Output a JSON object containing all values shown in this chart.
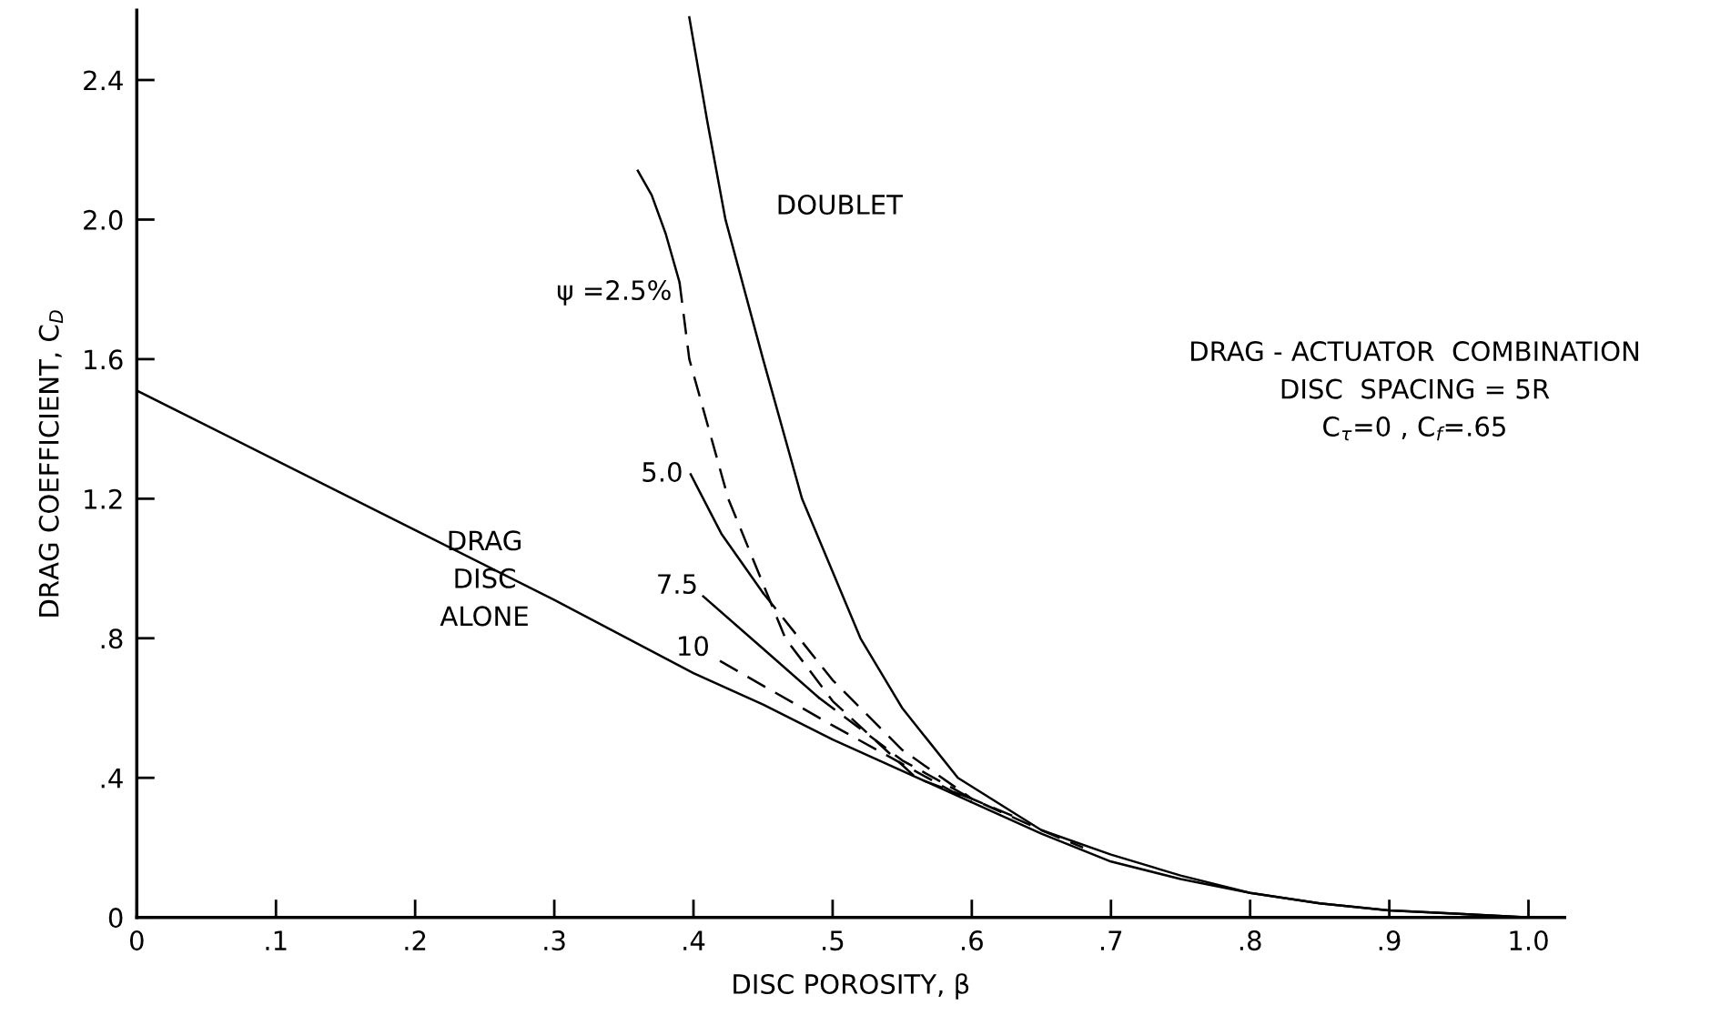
{
  "chart_data": {
    "type": "line",
    "xlabel": "DISC POROSITY, β",
    "ylabel": "DRAG COEFFICIENT, C$_{D}$",
    "xlim": [
      0,
      1.026
    ],
    "ylim": [
      0,
      2.6
    ],
    "xticks": [
      0,
      {
        "value": 0.1,
        "label": ".1"
      },
      {
        "value": 0.2,
        "label": ".2"
      },
      {
        "value": 0.3,
        "label": ".3"
      },
      {
        "value": 0.4,
        "label": ".4"
      },
      {
        "value": 0.5,
        "label": ".5"
      },
      {
        "value": 0.6,
        "label": ".6"
      },
      {
        "value": 0.7,
        "label": ".7"
      },
      {
        "value": 0.8,
        "label": ".8"
      },
      {
        "value": 0.9,
        "label": ".9"
      },
      {
        "value": 1.0,
        "label": "1.0"
      }
    ],
    "yticks": [
      0,
      {
        "value": 0.4,
        "label": ".4"
      },
      {
        "value": 0.8,
        "label": ".8"
      },
      {
        "value": 1.2,
        "label": "1.2"
      },
      {
        "value": 1.6,
        "label": "1.6"
      },
      {
        "value": 2.0,
        "label": "2.0"
      },
      {
        "value": 2.4,
        "label": "2.4"
      }
    ],
    "grid": false,
    "legend": false,
    "marker": "none",
    "series": [
      {
        "name": "DOUBLET",
        "color": "#000000",
        "line_style": "solid",
        "x": [
          0.397,
          0.41,
          0.423,
          0.45,
          0.478,
          0.52,
          0.55,
          0.59,
          0.65,
          0.7,
          0.75,
          0.8,
          0.85,
          0.9,
          0.95,
          1.0
        ],
        "values": [
          2.58,
          2.28,
          2.0,
          1.6,
          1.2,
          0.8,
          0.6,
          0.4,
          0.25,
          0.18,
          0.12,
          0.07,
          0.04,
          0.02,
          0.01,
          0
        ]
      },
      {
        "name": "DRAG\nDISC\nALONE",
        "color": "#000000",
        "line_style": "solid",
        "x": [
          0,
          0.1,
          0.2,
          0.3,
          0.4,
          0.45,
          0.5,
          0.55,
          0.6,
          0.65,
          0.7,
          0.75,
          0.8,
          0.85,
          0.9,
          0.95,
          1.0
        ],
        "values": [
          1.51,
          1.31,
          1.11,
          0.91,
          0.7,
          0.61,
          0.51,
          0.42,
          0.33,
          0.24,
          0.16,
          0.11,
          0.07,
          0.04,
          0.02,
          0.01,
          0
        ]
      },
      {
        "name": "ψ =2.5%",
        "color": "#000000",
        "line_style": "solid",
        "x": [
          0.36,
          0.37,
          0.38,
          0.39
        ],
        "values": [
          2.14,
          2.07,
          1.96,
          1.82
        ]
      },
      {
        "color": "#000000",
        "line_style": "dashed",
        "x": [
          0.39,
          0.397,
          0.425,
          0.466,
          0.5,
          0.56,
          0.6,
          0.65,
          0.68
        ],
        "values": [
          1.82,
          1.6,
          1.2,
          0.8,
          0.62,
          0.4,
          0.34,
          0.25,
          0.2
        ]
      },
      {
        "name": "5.0",
        "color": "#000000",
        "line_style": "solid",
        "x": [
          0.398,
          0.42,
          0.45
        ],
        "values": [
          1.27,
          1.1,
          0.93
        ]
      },
      {
        "color": "#000000",
        "line_style": "dashed",
        "x": [
          0.45,
          0.5,
          0.55,
          0.6,
          0.63
        ],
        "values": [
          0.93,
          0.68,
          0.48,
          0.34,
          0.29
        ]
      },
      {
        "name": "7.5",
        "color": "#000000",
        "line_style": "solid",
        "x": [
          0.407,
          0.45,
          0.49
        ],
        "values": [
          0.92,
          0.77,
          0.63
        ]
      },
      {
        "color": "#000000",
        "line_style": "dashed",
        "x": [
          0.49,
          0.55,
          0.6
        ],
        "values": [
          0.63,
          0.45,
          0.34
        ]
      },
      {
        "name": "10",
        "color": "#000000",
        "line_style": "dashed",
        "x": [
          0.419,
          0.5,
          0.55,
          0.6
        ],
        "values": [
          0.735,
          0.55,
          0.44,
          0.33
        ]
      }
    ],
    "annotations": [
      "DRAG - ACTUATOR  COMBINATION\nDISC  SPACING = 5R\nC$_{τ}$=0 , C$_{f}$=.65"
    ]
  }
}
